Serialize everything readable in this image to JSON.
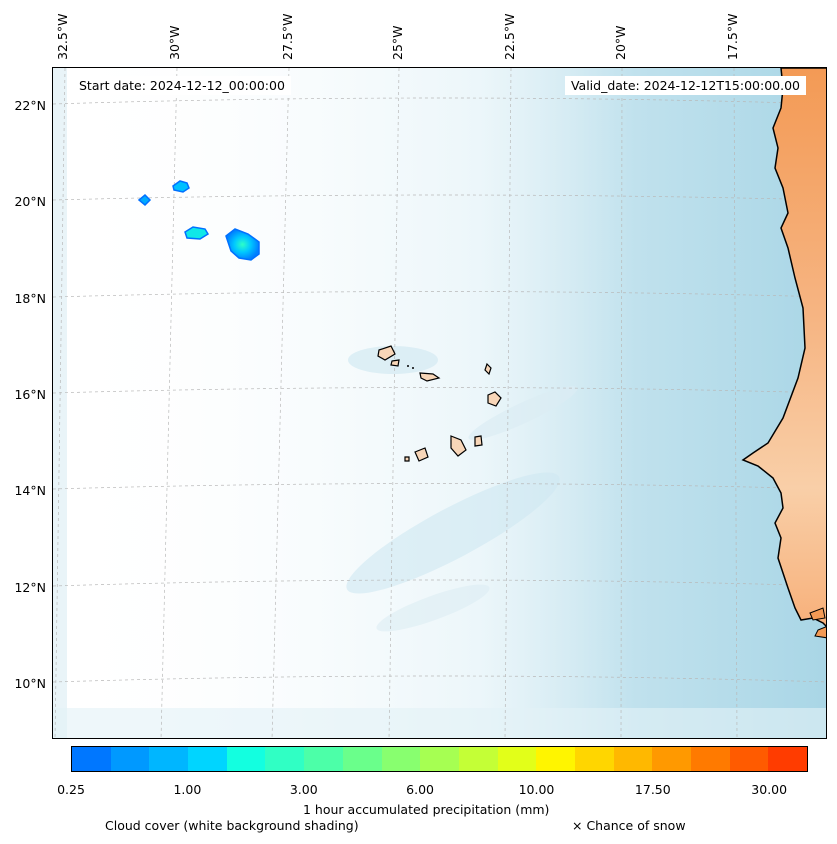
{
  "map": {
    "start_date_label": "Start date: 2024-12-12_00:00:00",
    "valid_date_label": "Valid_date: 2024-12-12T15:00:00.00",
    "lat_labels": [
      "22°N",
      "20°N",
      "18°N",
      "16°N",
      "14°N",
      "12°N",
      "10°N"
    ],
    "lon_labels": [
      "32.5°W",
      "30°W",
      "27.5°W",
      "25°W",
      "22.5°W",
      "20°W",
      "17.5°W"
    ],
    "land_color": "#f5b27a",
    "ocean_cloud_color": "#b5dcea"
  },
  "colorbar": {
    "colors": [
      "#0077ff",
      "#0099ff",
      "#00b6ff",
      "#00d5ff",
      "#13ffe0",
      "#30ffc4",
      "#4cffa8",
      "#6aff8b",
      "#88ff6f",
      "#a6ff52",
      "#c4ff36",
      "#e2ff19",
      "#fff500",
      "#ffd600",
      "#ffb800",
      "#ff9900",
      "#ff7a00",
      "#ff5b00",
      "#ff3c00"
    ],
    "tick_labels": [
      "0.25",
      "1.00",
      "3.00",
      "6.00",
      "10.00",
      "17.50",
      "30.00"
    ],
    "label": "1 hour accumulated precipitation (mm)"
  },
  "legend": {
    "cloud_cover": "Cloud cover (white background shading)",
    "snow": "× Chance of snow"
  }
}
